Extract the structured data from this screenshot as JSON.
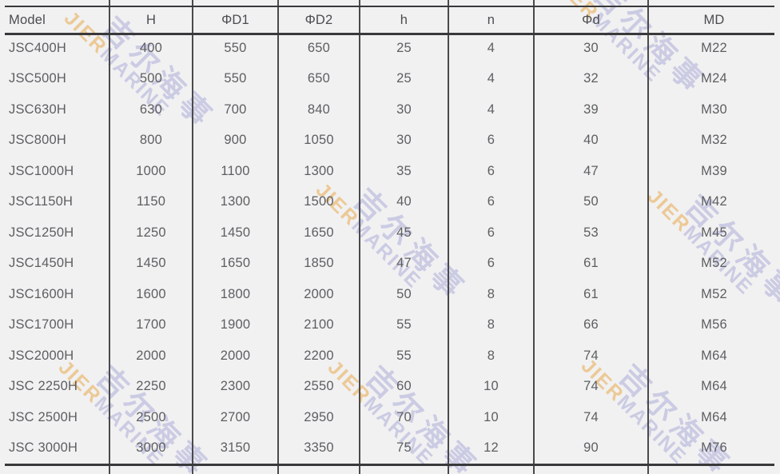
{
  "table": {
    "columns": [
      "Model",
      "H",
      "ΦD1",
      "ΦD2",
      "h",
      "n",
      "Φd",
      "MD"
    ],
    "rows": [
      [
        "JSC400H",
        "400",
        "550",
        "650",
        "25",
        "4",
        "30",
        "M22"
      ],
      [
        "JSC500H",
        "500",
        "550",
        "650",
        "25",
        "4",
        "32",
        "M24"
      ],
      [
        "JSC630H",
        "630",
        "700",
        "840",
        "30",
        "4",
        "39",
        "M30"
      ],
      [
        "JSC800H",
        "800",
        "900",
        "1050",
        "30",
        "6",
        "40",
        "M32"
      ],
      [
        "JSC1000H",
        "1000",
        "1100",
        "1300",
        "35",
        "6",
        "47",
        "M39"
      ],
      [
        "JSC1150H",
        "1150",
        "1300",
        "1500",
        "40",
        "6",
        "50",
        "M42"
      ],
      [
        "JSC1250H",
        "1250",
        "1450",
        "1650",
        "45",
        "6",
        "53",
        "M45"
      ],
      [
        "JSC1450H",
        "1450",
        "1650",
        "1850",
        "47",
        "6",
        "61",
        "M52"
      ],
      [
        "JSC1600H",
        "1600",
        "1800",
        "2000",
        "50",
        "8",
        "61",
        "M52"
      ],
      [
        "JSC1700H",
        "1700",
        "1900",
        "2100",
        "55",
        "8",
        "66",
        "M56"
      ],
      [
        "JSC2000H",
        "2000",
        "2000",
        "2200",
        "55",
        "8",
        "74",
        "M64"
      ],
      [
        "JSC 2250H",
        "2250",
        "2300",
        "2550",
        "60",
        "10",
        "74",
        "M64"
      ],
      [
        "JSC 2500H",
        "2500",
        "2700",
        "2950",
        "70",
        "10",
        "74",
        "M64"
      ],
      [
        "JSC 3000H",
        "3000",
        "3150",
        "3350",
        "75",
        "12",
        "90",
        "M76"
      ]
    ]
  },
  "chart_data": {
    "type": "table",
    "title": "",
    "columns": [
      "Model",
      "H",
      "ΦD1",
      "ΦD2",
      "h",
      "n",
      "Φd",
      "MD"
    ],
    "rows": [
      [
        "JSC400H",
        400,
        550,
        650,
        25,
        4,
        30,
        "M22"
      ],
      [
        "JSC500H",
        500,
        550,
        650,
        25,
        4,
        32,
        "M24"
      ],
      [
        "JSC630H",
        630,
        700,
        840,
        30,
        4,
        39,
        "M30"
      ],
      [
        "JSC800H",
        800,
        900,
        1050,
        30,
        6,
        40,
        "M32"
      ],
      [
        "JSC1000H",
        1000,
        1100,
        1300,
        35,
        6,
        47,
        "M39"
      ],
      [
        "JSC1150H",
        1150,
        1300,
        1500,
        40,
        6,
        50,
        "M42"
      ],
      [
        "JSC1250H",
        1250,
        1450,
        1650,
        45,
        6,
        53,
        "M45"
      ],
      [
        "JSC1450H",
        1450,
        1650,
        1850,
        47,
        6,
        61,
        "M52"
      ],
      [
        "JSC1600H",
        1600,
        1800,
        2000,
        50,
        8,
        61,
        "M52"
      ],
      [
        "JSC1700H",
        1700,
        1900,
        2100,
        55,
        8,
        66,
        "M56"
      ],
      [
        "JSC2000H",
        2000,
        2000,
        2200,
        55,
        8,
        74,
        "M64"
      ],
      [
        "JSC 2250H",
        2250,
        2300,
        2550,
        60,
        10,
        74,
        "M64"
      ],
      [
        "JSC 2500H",
        2500,
        2700,
        2950,
        70,
        10,
        74,
        "M64"
      ],
      [
        "JSC 3000H",
        3000,
        3150,
        3350,
        75,
        12,
        90,
        "M76"
      ]
    ]
  },
  "watermark": {
    "cn": "吉尔海事",
    "latin_accent": "JIER",
    "latin_rest": "MARINE",
    "color_lavender": "#9696d0",
    "color_orange": "#e8a442"
  },
  "colors": {
    "background": "#f1f1f2",
    "text": "#5d5e60",
    "header_text": "#4b4c4e",
    "rule_line": "#39393b",
    "divider_line": "#4a4a4c"
  }
}
